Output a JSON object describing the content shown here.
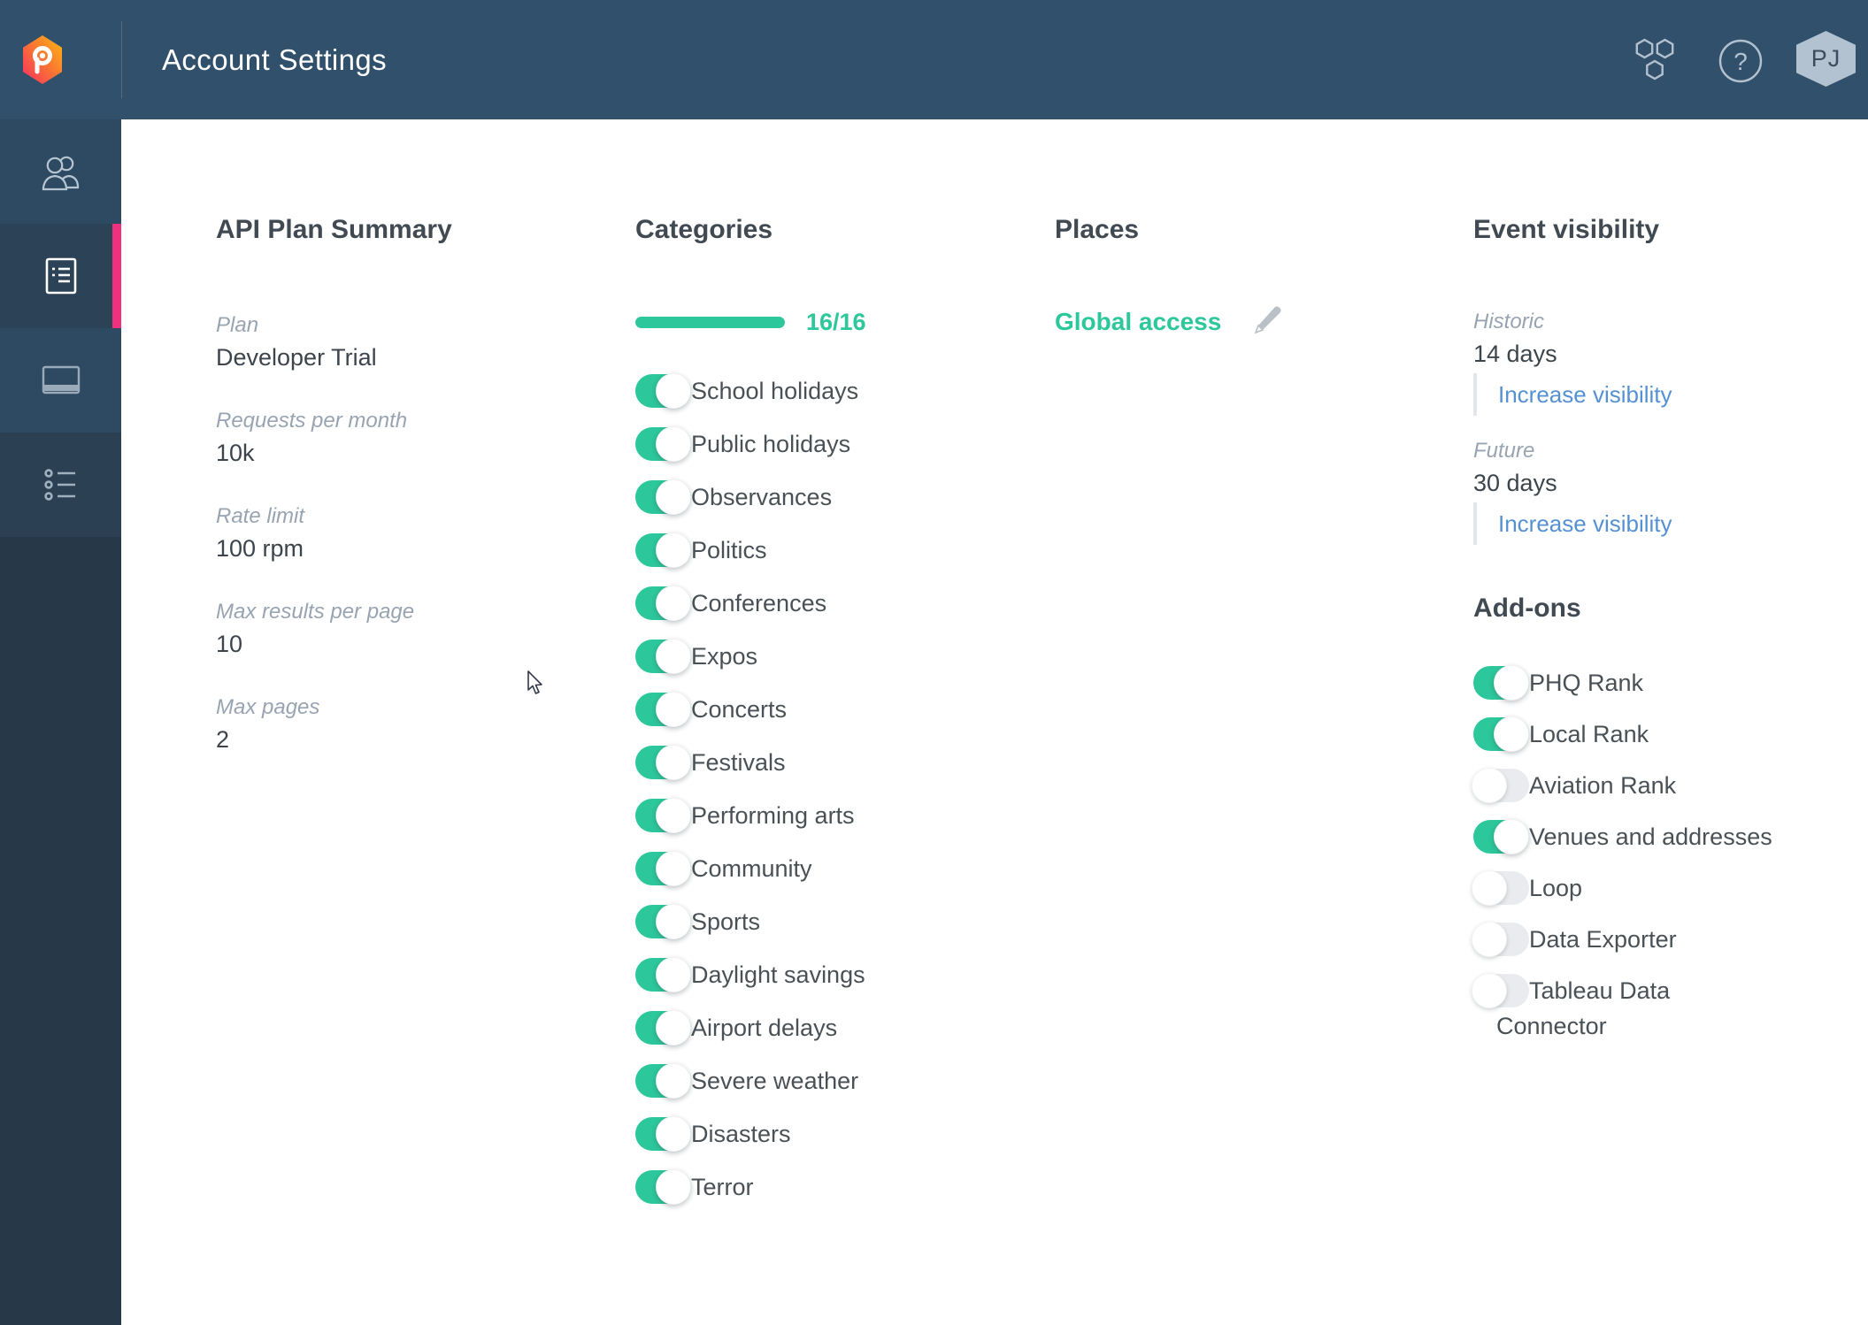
{
  "header": {
    "title": "Account Settings",
    "avatar_initials": "PJ"
  },
  "sidebar": {
    "items": [
      {
        "icon": "team-icon",
        "active": false
      },
      {
        "icon": "api-plan-icon",
        "active": true
      },
      {
        "icon": "billing-card-icon",
        "active": false
      },
      {
        "icon": "activity-list-icon",
        "active": false
      }
    ]
  },
  "plan_summary": {
    "heading": "API Plan Summary",
    "fields": [
      {
        "label": "Plan",
        "value": "Developer Trial"
      },
      {
        "label": "Requests per month",
        "value": "10k"
      },
      {
        "label": "Rate limit",
        "value": "100 rpm"
      },
      {
        "label": "Max results per page",
        "value": "10"
      },
      {
        "label": "Max pages",
        "value": "2"
      }
    ]
  },
  "categories": {
    "heading": "Categories",
    "progress": {
      "current": 16,
      "total": 16,
      "label": "16/16"
    },
    "items": [
      {
        "label": "School holidays",
        "enabled": true
      },
      {
        "label": "Public holidays",
        "enabled": true
      },
      {
        "label": "Observances",
        "enabled": true
      },
      {
        "label": "Politics",
        "enabled": true
      },
      {
        "label": "Conferences",
        "enabled": true
      },
      {
        "label": "Expos",
        "enabled": true
      },
      {
        "label": "Concerts",
        "enabled": true
      },
      {
        "label": "Festivals",
        "enabled": true
      },
      {
        "label": "Performing arts",
        "enabled": true
      },
      {
        "label": "Community",
        "enabled": true
      },
      {
        "label": "Sports",
        "enabled": true
      },
      {
        "label": "Daylight savings",
        "enabled": true
      },
      {
        "label": "Airport delays",
        "enabled": true
      },
      {
        "label": "Severe weather",
        "enabled": true
      },
      {
        "label": "Disasters",
        "enabled": true
      },
      {
        "label": "Terror",
        "enabled": true
      }
    ]
  },
  "places": {
    "heading": "Places",
    "access_label": "Global access"
  },
  "event_visibility": {
    "heading": "Event visibility",
    "sections": [
      {
        "label": "Historic",
        "value": "14 days",
        "link": "Increase visibility"
      },
      {
        "label": "Future",
        "value": "30 days",
        "link": "Increase visibility"
      }
    ]
  },
  "addons": {
    "heading": "Add-ons",
    "items": [
      {
        "label": "PHQ Rank",
        "enabled": true
      },
      {
        "label": "Local Rank",
        "enabled": true
      },
      {
        "label": "Aviation Rank",
        "enabled": false
      },
      {
        "label": "Venues and addresses",
        "enabled": true
      },
      {
        "label": "Loop",
        "enabled": false
      },
      {
        "label": "Data Exporter",
        "enabled": false
      },
      {
        "label": "Tableau Data Connector",
        "enabled": false
      }
    ]
  },
  "colors": {
    "accent_green": "#2dc79c",
    "accent_pink": "#f0327e",
    "link_blue": "#5591d2",
    "header_bg": "#31506c",
    "sidebar_bg": "#273849"
  }
}
